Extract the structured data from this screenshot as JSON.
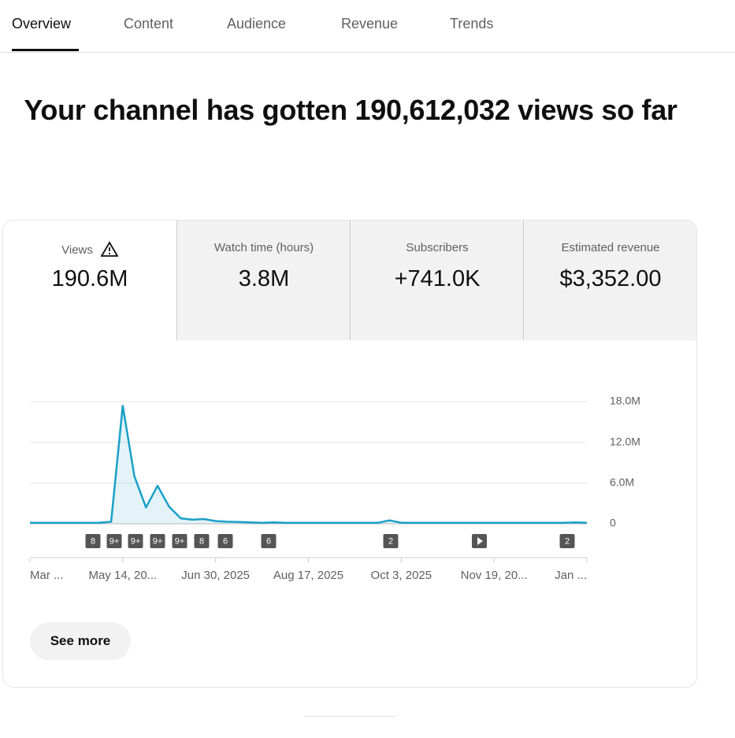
{
  "tabs": [
    "Overview",
    "Content",
    "Audience",
    "Revenue",
    "Trends"
  ],
  "headline": "Your channel has gotten 190,612,032 views so far",
  "metrics": [
    {
      "label": "Views",
      "value": "190.6M"
    },
    {
      "label": "Watch time (hours)",
      "value": "3.8M"
    },
    {
      "label": "Subscribers",
      "value": "+741.0K"
    },
    {
      "label": "Estimated revenue",
      "value": "$3,352.00"
    }
  ],
  "chart_data": {
    "type": "line",
    "categories": [
      "Mar ...",
      null,
      null,
      null,
      null,
      null,
      null,
      null,
      "May 14, 20...",
      null,
      null,
      null,
      null,
      null,
      null,
      null,
      "Jun 30, 2025",
      null,
      null,
      null,
      null,
      null,
      null,
      null,
      "Aug 17, 2025",
      null,
      null,
      null,
      null,
      null,
      null,
      null,
      "Oct 3, 2025",
      null,
      null,
      null,
      null,
      null,
      null,
      null,
      "Nov 19, 20...",
      null,
      null,
      null,
      null,
      null,
      null,
      null,
      "Jan ..."
    ],
    "series": [
      {
        "name": "Views",
        "color": "#1aa0c8",
        "values": [
          150000,
          150000,
          150000,
          150000,
          150000,
          150000,
          150000,
          300000,
          17400000,
          7000000,
          2400000,
          5600000,
          2500000,
          800000,
          600000,
          700000,
          400000,
          300000,
          250000,
          200000,
          150000,
          200000,
          150000,
          150000,
          150000,
          150000,
          150000,
          150000,
          150000,
          150000,
          150000,
          500000,
          150000,
          150000,
          150000,
          150000,
          150000,
          150000,
          150000,
          150000,
          150000,
          150000,
          150000,
          150000,
          150000,
          150000,
          150000,
          200000,
          150000
        ]
      }
    ],
    "ylim": [
      0,
      18000000
    ],
    "yticks": [
      0,
      {
        "value": 6000000,
        "label": "6.0M"
      },
      {
        "value": 12000000,
        "label": "12.0M"
      },
      {
        "value": 18000000,
        "label": "18.0M"
      }
    ],
    "grid": true,
    "video_markers": [
      "8",
      "9+",
      "9+",
      "9+",
      "9+",
      "8",
      "6",
      "6",
      "2",
      "2"
    ]
  },
  "button": "See more"
}
